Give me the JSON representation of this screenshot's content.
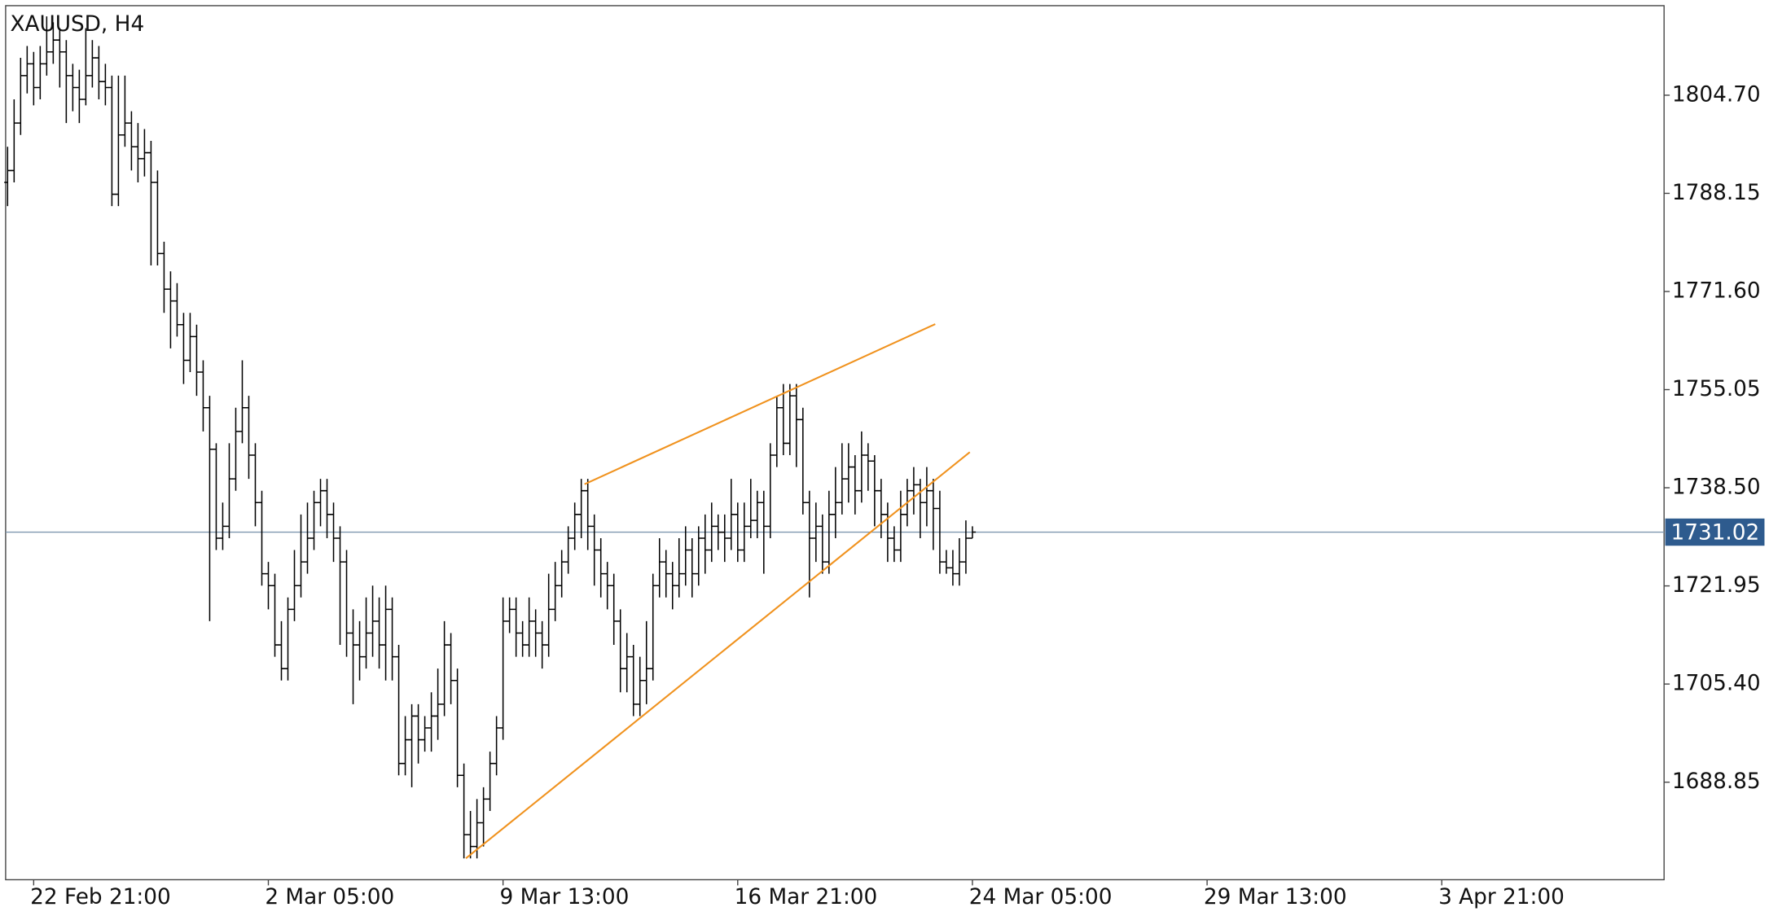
{
  "chart_data": {
    "type": "ohlc",
    "title": "XAUUSD, H4",
    "open": [
      1790,
      1792,
      1800,
      1808,
      1810,
      1806,
      1810,
      1812,
      1814,
      1812,
      1808,
      1806,
      1804,
      1808,
      1811,
      1807,
      1806,
      1788,
      1798,
      1800,
      1796,
      1794,
      1795,
      1790,
      1778,
      1772,
      1770,
      1766,
      1760,
      1764,
      1758,
      1752,
      1745,
      1730,
      1732,
      1740,
      1748,
      1752,
      1744,
      1736,
      1724,
      1722,
      1712,
      1708,
      1718,
      1722,
      1726,
      1730,
      1736,
      1738,
      1734,
      1730,
      1726,
      1714,
      1712,
      1710,
      1714,
      1716,
      1712,
      1718,
      1710,
      1692,
      1696,
      1700,
      1696,
      1698,
      1700,
      1702,
      1712,
      1706,
      1690,
      1680,
      1678,
      1682,
      1686,
      1692,
      1698,
      1716,
      1718,
      1714,
      1712,
      1716,
      1714,
      1712,
      1718,
      1722,
      1726,
      1730,
      1734,
      1738,
      1732,
      1728,
      1724,
      1722,
      1716,
      1708,
      1710,
      1702,
      1706,
      1708,
      1722,
      1726,
      1724,
      1722,
      1724,
      1728,
      1724,
      1730,
      1728,
      1732,
      1731,
      1730,
      1734,
      1728,
      1732,
      1733,
      1736,
      1732,
      1744,
      1752,
      1746,
      1754,
      1750,
      1736,
      1730,
      1732,
      1726,
      1734,
      1736,
      1740,
      1742,
      1738,
      1744,
      1743,
      1738,
      1734,
      1730,
      1728,
      1734,
      1738,
      1739,
      1736,
      1738,
      1735,
      1726,
      1725,
      1724,
      1726,
      1730
    ],
    "high": [
      1796,
      1804,
      1811,
      1813,
      1812,
      1813,
      1818,
      1817,
      1816,
      1814,
      1810,
      1809,
      1816,
      1814,
      1813,
      1810,
      1808,
      1808,
      1808,
      1802,
      1800,
      1799,
      1797,
      1792,
      1780,
      1775,
      1773,
      1768,
      1768,
      1766,
      1760,
      1754,
      1746,
      1736,
      1746,
      1752,
      1760,
      1754,
      1746,
      1738,
      1726,
      1724,
      1716,
      1720,
      1728,
      1734,
      1736,
      1738,
      1740,
      1740,
      1736,
      1732,
      1728,
      1718,
      1716,
      1720,
      1722,
      1720,
      1722,
      1720,
      1712,
      1700,
      1702,
      1702,
      1700,
      1704,
      1708,
      1716,
      1714,
      1708,
      1692,
      1684,
      1686,
      1688,
      1694,
      1700,
      1720,
      1720,
      1720,
      1716,
      1720,
      1718,
      1716,
      1724,
      1726,
      1728,
      1732,
      1736,
      1740,
      1740,
      1734,
      1730,
      1726,
      1724,
      1718,
      1714,
      1712,
      1710,
      1716,
      1724,
      1730,
      1728,
      1726,
      1730,
      1732,
      1730,
      1732,
      1734,
      1736,
      1734,
      1734,
      1740,
      1736,
      1736,
      1740,
      1738,
      1738,
      1746,
      1754,
      1756,
      1756,
      1756,
      1752,
      1738,
      1736,
      1734,
      1738,
      1742,
      1746,
      1746,
      1744,
      1748,
      1746,
      1744,
      1740,
      1736,
      1732,
      1738,
      1740,
      1742,
      1740,
      1742,
      1740,
      1738,
      1728,
      1728,
      1730,
      1733,
      1732
    ],
    "low": [
      1786,
      1790,
      1798,
      1805,
      1803,
      1804,
      1808,
      1810,
      1806,
      1800,
      1802,
      1800,
      1803,
      1806,
      1804,
      1803,
      1786,
      1786,
      1796,
      1792,
      1790,
      1791,
      1776,
      1776,
      1768,
      1762,
      1764,
      1756,
      1758,
      1754,
      1748,
      1716,
      1728,
      1728,
      1730,
      1738,
      1746,
      1740,
      1732,
      1722,
      1718,
      1710,
      1706,
      1706,
      1716,
      1720,
      1724,
      1728,
      1732,
      1730,
      1726,
      1712,
      1710,
      1702,
      1706,
      1708,
      1710,
      1708,
      1706,
      1706,
      1690,
      1690,
      1688,
      1692,
      1694,
      1694,
      1696,
      1700,
      1702,
      1688,
      1676,
      1676,
      1676,
      1678,
      1684,
      1690,
      1696,
      1714,
      1710,
      1710,
      1710,
      1710,
      1708,
      1710,
      1716,
      1720,
      1724,
      1728,
      1730,
      1728,
      1722,
      1720,
      1718,
      1712,
      1704,
      1704,
      1700,
      1700,
      1702,
      1706,
      1720,
      1720,
      1718,
      1720,
      1722,
      1720,
      1722,
      1724,
      1726,
      1728,
      1726,
      1728,
      1726,
      1726,
      1730,
      1730,
      1724,
      1730,
      1742,
      1744,
      1744,
      1742,
      1734,
      1720,
      1726,
      1724,
      1724,
      1730,
      1734,
      1736,
      1734,
      1736,
      1738,
      1732,
      1730,
      1726,
      1726,
      1726,
      1732,
      1734,
      1730,
      1732,
      1728,
      1724,
      1724,
      1722,
      1722,
      1724,
      1730
    ],
    "close": [
      1792,
      1800,
      1808,
      1810,
      1806,
      1810,
      1812,
      1814,
      1812,
      1808,
      1806,
      1804,
      1808,
      1811,
      1807,
      1806,
      1788,
      1798,
      1800,
      1796,
      1794,
      1795,
      1790,
      1778,
      1772,
      1770,
      1766,
      1760,
      1764,
      1758,
      1752,
      1745,
      1730,
      1732,
      1740,
      1748,
      1752,
      1744,
      1736,
      1724,
      1722,
      1712,
      1708,
      1718,
      1722,
      1726,
      1730,
      1736,
      1738,
      1734,
      1730,
      1726,
      1714,
      1712,
      1710,
      1714,
      1716,
      1712,
      1718,
      1710,
      1692,
      1696,
      1700,
      1696,
      1698,
      1700,
      1702,
      1712,
      1706,
      1690,
      1680,
      1678,
      1682,
      1686,
      1692,
      1698,
      1716,
      1718,
      1714,
      1712,
      1716,
      1714,
      1712,
      1718,
      1722,
      1726,
      1730,
      1734,
      1738,
      1732,
      1728,
      1724,
      1722,
      1716,
      1708,
      1710,
      1702,
      1706,
      1708,
      1722,
      1726,
      1724,
      1722,
      1724,
      1728,
      1724,
      1730,
      1728,
      1732,
      1731,
      1730,
      1734,
      1728,
      1732,
      1733,
      1736,
      1732,
      1744,
      1752,
      1746,
      1754,
      1750,
      1736,
      1730,
      1732,
      1726,
      1734,
      1736,
      1740,
      1742,
      1738,
      1744,
      1743,
      1738,
      1734,
      1730,
      1728,
      1734,
      1738,
      1739,
      1736,
      1738,
      1735,
      1726,
      1725,
      1724,
      1726,
      1730,
      1731.02
    ],
    "bar_color": "#000000",
    "last_price": 1731.02,
    "last_price_color": "#2e5b8e",
    "trendlines": [
      {
        "color": "#f0921e",
        "points": [
          [
            70.3,
            1676
          ],
          [
            147.6,
            1744.5
          ]
        ]
      },
      {
        "color": "#f0921e",
        "points": [
          [
            88.5,
            1739.1
          ],
          [
            142.3,
            1766.1
          ]
        ]
      }
    ],
    "xlim": [
      -0.3,
      254.1
    ],
    "ylim": [
      1672.4,
      1819.8
    ],
    "xticks": [
      {
        "value": 4,
        "label": "22 Feb 21:00"
      },
      {
        "value": 40,
        "label": "2 Mar 05:00"
      },
      {
        "value": 76,
        "label": "9 Mar 13:00"
      },
      {
        "value": 112,
        "label": "16 Mar 21:00"
      },
      {
        "value": 148,
        "label": "24 Mar 05:00"
      },
      {
        "value": 184,
        "label": "29 Mar 13:00"
      },
      {
        "value": 220,
        "label": "3 Apr 21:00"
      }
    ],
    "yticks": [
      1688.85,
      {
        "value": 1705.4,
        "label": "1705.40"
      },
      1721.95,
      {
        "value": 1738.5,
        "label": "1738.50"
      },
      1755.05,
      {
        "value": 1771.6,
        "label": "1771.60"
      },
      1788.15,
      {
        "value": 1804.7,
        "label": "1804.70"
      }
    ]
  }
}
